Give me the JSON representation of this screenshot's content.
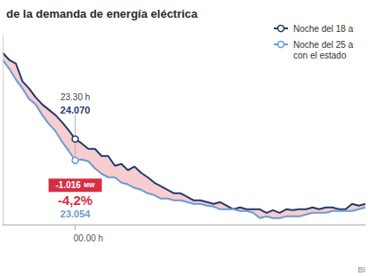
{
  "chart_data": {
    "type": "line",
    "title": "de la demanda de energía eléctrica",
    "categories": [
      null,
      null,
      null,
      null,
      null,
      null,
      null,
      null,
      null,
      null,
      null,
      null,
      null,
      "00.00 h",
      null,
      null,
      null,
      null,
      null,
      null,
      null,
      null,
      null,
      null,
      null,
      null,
      null,
      null,
      null,
      null,
      null,
      null,
      null,
      null,
      null,
      null,
      null,
      null,
      null,
      null,
      null,
      null,
      null,
      null,
      null,
      null,
      null,
      null,
      null,
      null,
      null,
      null,
      null,
      null,
      null,
      null
    ],
    "series": [
      {
        "name": "Noche del 18 a",
        "color": "#1f3b6f",
        "values": [
          28176,
          27837,
          27668,
          26821,
          26483,
          26060,
          25721,
          25467,
          25213,
          24874,
          24493,
          24070,
          23858,
          23604,
          23604,
          23266,
          23266,
          22800,
          22885,
          22588,
          22758,
          22461,
          22250,
          21996,
          21827,
          21657,
          21488,
          21488,
          21319,
          21149,
          21149,
          21065,
          20980,
          21065,
          20895,
          20726,
          20811,
          20726,
          20726,
          20726,
          20557,
          20684,
          20557,
          20726,
          20684,
          20726,
          20726,
          20811,
          20726,
          20811,
          20811,
          20726,
          20726,
          20980,
          20895,
          20980
        ]
      },
      {
        "name": "Noche del 25 a con el estado",
        "color": "#6b9bd2",
        "values": [
          27837,
          27414,
          26906,
          26483,
          25975,
          25721,
          25213,
          24790,
          24451,
          23943,
          23520,
          23054,
          23096,
          23012,
          22673,
          22419,
          22250,
          22250,
          21996,
          21911,
          21742,
          21657,
          21488,
          21403,
          21234,
          21234,
          21149,
          21149,
          21065,
          20980,
          20980,
          20895,
          20853,
          20726,
          20726,
          20726,
          20641,
          20641,
          20557,
          20303,
          20387,
          20303,
          20303,
          20387,
          20387,
          20387,
          20472,
          20557,
          20557,
          20557,
          20641,
          20641,
          20641,
          20641,
          20726,
          20811
        ]
      }
    ],
    "ylim": [
      20000,
      29000
    ],
    "yticks": [],
    "grid": false,
    "legend": "upper right",
    "tick_labels": "x",
    "annotations": {
      "time": "23.30 h",
      "values": [
        {
          "value": 24070,
          "label": "24.070"
        },
        {
          "value": 23054,
          "label": "23.054"
        }
      ],
      "difference": {
        "value": -1016,
        "label": "-1.016",
        "unit": "MW"
      },
      "change": {
        "value": -4.2,
        "label": "-4,2%"
      }
    },
    "source": "BI"
  }
}
